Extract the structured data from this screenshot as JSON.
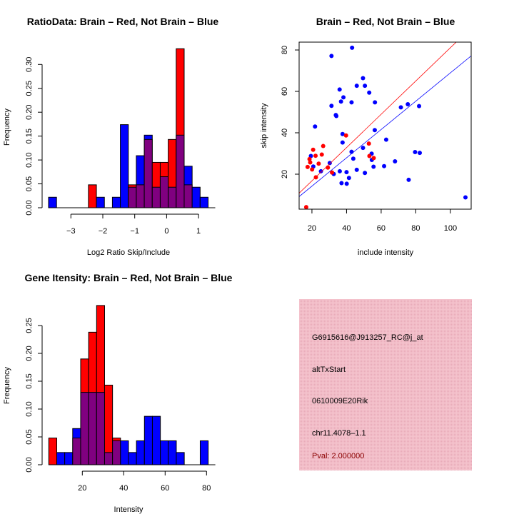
{
  "colors": {
    "red": "#ff0000",
    "blue": "#0000ff",
    "overlap": "#800080",
    "panel": "#f4c2cc",
    "pval": "#8b0000"
  },
  "chart_data": [
    {
      "type": "bar",
      "id": "ratio",
      "title": "RatioData: Brain – Red, Not Brain – Blue",
      "xlabel": "Log2 Ratio Skip/Include",
      "ylabel": "Frequency",
      "bin_start": -3.7,
      "bin_width": 0.25,
      "xticks": [
        -3,
        -2,
        -1,
        0,
        1
      ],
      "xtick_labels": [
        "−3",
        "−2",
        "−1",
        "0",
        "1"
      ],
      "yticks": [
        0,
        0.05,
        0.1,
        0.15,
        0.2,
        0.25,
        0.3
      ],
      "ytick_labels": [
        "0.00",
        "0.05",
        "0.10",
        "0.15",
        "0.20",
        "0.25",
        "0.30"
      ],
      "ylim": [
        0,
        0.33
      ],
      "series": [
        {
          "name": "Not Brain",
          "color": "blue",
          "values": [
            0.022,
            0,
            0,
            0,
            0,
            0,
            0.022,
            0,
            0.022,
            0.174,
            0.043,
            0.109,
            0.152,
            0.043,
            0.065,
            0.043,
            0.152,
            0.087,
            0.043,
            0.022
          ]
        },
        {
          "name": "Brain",
          "color": "red",
          "values": [
            0,
            0,
            0,
            0,
            0,
            0.048,
            0,
            0,
            0,
            0,
            0.048,
            0.048,
            0.143,
            0.095,
            0.095,
            0.143,
            0.333,
            0.048,
            0,
            0
          ]
        }
      ]
    },
    {
      "type": "scatter",
      "id": "scatter",
      "title": "Brain – Red, Not Brain – Blue",
      "xlabel": "include intensity",
      "ylabel": "skip intensity",
      "xlim": [
        12.6,
        112
      ],
      "ylim": [
        3.1,
        83.8
      ],
      "xticks": [
        20,
        40,
        60,
        80,
        100
      ],
      "yticks": [
        20,
        40,
        60,
        80
      ],
      "series": [
        {
          "name": "Not Brain",
          "color": "blue",
          "fit": {
            "slope": 0.684,
            "intercept": 0.55
          },
          "points": [
            [
              43.2,
              81.1
            ],
            [
              31.3,
              77.1
            ],
            [
              49.5,
              66.4
            ],
            [
              45.9,
              62.7
            ],
            [
              50.6,
              62.7
            ],
            [
              36.0,
              60.9
            ],
            [
              53.1,
              59.4
            ],
            [
              38.2,
              57.1
            ],
            [
              36.8,
              55.1
            ],
            [
              42.9,
              54.7
            ],
            [
              56.4,
              54.7
            ],
            [
              31.3,
              53.0
            ],
            [
              33.8,
              48.6
            ],
            [
              34.1,
              48.1
            ],
            [
              71.4,
              52.3
            ],
            [
              75.4,
              53.8
            ],
            [
              81.9,
              52.9
            ],
            [
              21.8,
              43.0
            ],
            [
              56.3,
              41.3
            ],
            [
              37.7,
              39.4
            ],
            [
              37.7,
              35.3
            ],
            [
              62.9,
              36.7
            ],
            [
              19.4,
              28.8
            ],
            [
              42.9,
              30.8
            ],
            [
              49.5,
              32.7
            ],
            [
              54.5,
              29.9
            ],
            [
              43.9,
              27.5
            ],
            [
              54.6,
              26.9
            ],
            [
              79.6,
              30.7
            ],
            [
              82.3,
              30.3
            ],
            [
              68.0,
              26.2
            ],
            [
              30.3,
              25.4
            ],
            [
              20.8,
              23.7
            ],
            [
              55.6,
              23.6
            ],
            [
              61.7,
              23.9
            ],
            [
              25.2,
              21.4
            ],
            [
              32.6,
              20.1
            ],
            [
              36.1,
              21.4
            ],
            [
              40.0,
              21.0
            ],
            [
              45.9,
              22.1
            ],
            [
              50.6,
              20.6
            ],
            [
              41.4,
              18.2
            ],
            [
              37.1,
              15.7
            ],
            [
              40.1,
              15.4
            ],
            [
              75.9,
              17.3
            ],
            [
              108.7,
              8.8
            ]
          ]
        },
        {
          "name": "Brain",
          "color": "red",
          "fit": {
            "slope": 0.804,
            "intercept": 0.7
          },
          "points": [
            [
              16.7,
              4.1
            ],
            [
              17.5,
              23.5
            ],
            [
              18.6,
              27.3
            ],
            [
              19.0,
              25.7
            ],
            [
              20.1,
              22.3
            ],
            [
              20.7,
              31.8
            ],
            [
              22.1,
              28.9
            ],
            [
              22.3,
              18.5
            ],
            [
              23.9,
              25.1
            ],
            [
              25.7,
              29.5
            ],
            [
              26.5,
              33.6
            ],
            [
              29.2,
              23.2
            ],
            [
              31.6,
              20.8
            ],
            [
              39.7,
              38.7
            ],
            [
              52.9,
              34.8
            ],
            [
              53.2,
              28.8
            ],
            [
              55.7,
              27.8
            ]
          ]
        }
      ]
    },
    {
      "type": "bar",
      "id": "intensity",
      "title": "Gene Itensity: Brain – Red, Not Brain – Blue",
      "xlabel": "Intensity",
      "ylabel": "Frequency",
      "bin_start": 3.8,
      "bin_width": 3.85,
      "xticks": [
        20,
        40,
        60,
        80
      ],
      "xtick_labels": [
        "20",
        "40",
        "60",
        "80"
      ],
      "yticks": [
        0,
        0.05,
        0.1,
        0.15,
        0.2,
        0.25
      ],
      "ytick_labels": [
        "0.00",
        "0.05",
        "0.10",
        "0.15",
        "0.20",
        "0.25"
      ],
      "ylim": [
        0,
        0.29
      ],
      "series": [
        {
          "name": "Not Brain",
          "color": "blue",
          "values": [
            0,
            0.022,
            0.022,
            0.065,
            0.13,
            0.13,
            0.13,
            0.022,
            0.043,
            0.043,
            0.022,
            0.043,
            0.087,
            0.087,
            0.043,
            0.043,
            0.022,
            0,
            0,
            0.043
          ]
        },
        {
          "name": "Brain",
          "color": "red",
          "values": [
            0.048,
            0,
            0,
            0.048,
            0.19,
            0.238,
            0.286,
            0.143,
            0.048,
            0,
            0,
            0,
            0,
            0,
            0,
            0,
            0,
            0,
            0,
            0
          ]
        }
      ]
    }
  ],
  "info_panel": {
    "probe": "G6915616@J913257_RC@j_at",
    "event": "altTxStart",
    "gene": "0610009E20Rik",
    "location": "chr11.4078–1.1",
    "pval": "Pval: 2.000000"
  }
}
